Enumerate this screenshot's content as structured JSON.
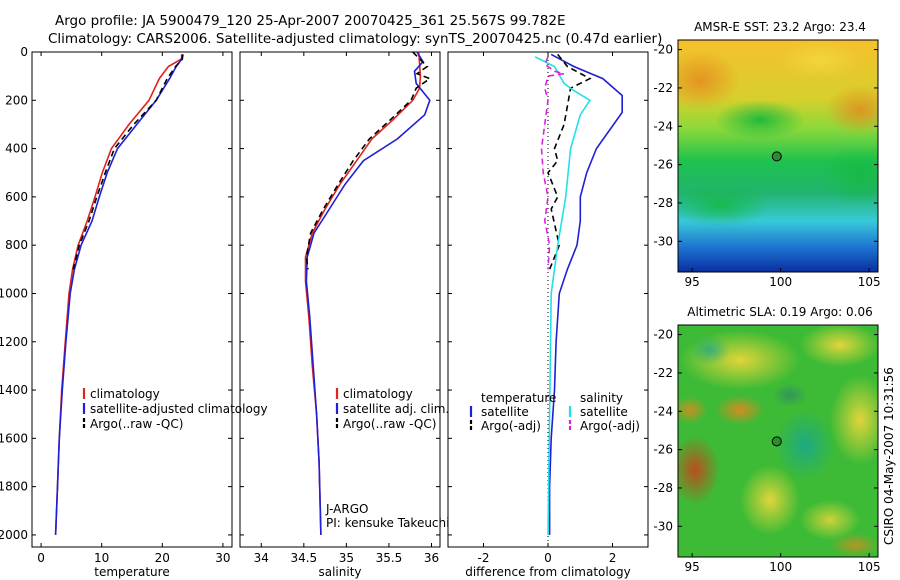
{
  "figure": {
    "title_line1": "Argo profile: JA 5900479_120 25-Apr-2007 20070425_361 25.567S 99.782E",
    "title_line2": "Climatology: CARS2006. Satellite-adjusted climatology: synTS_20070425.nc (0.47d earlier)",
    "side_stamp": "CSIRO 04-May-2007 10:31:56"
  },
  "colors": {
    "climatology": "#e0231b",
    "satellite": "#1f1fd6",
    "argo": "#000000",
    "satellite_diff": "#22e0e8",
    "argo_adj": "#e020e0",
    "marker": "#2e8b2e"
  },
  "chart_data": [
    {
      "id": "temperature",
      "type": "line",
      "xlabel": "temperature",
      "xlim": [
        -1.5,
        31.5
      ],
      "ylim": [
        2050,
        0
      ],
      "xticks": [
        0,
        10,
        20,
        30
      ],
      "yticks": [
        0,
        200,
        400,
        600,
        800,
        1000,
        1200,
        1400,
        1600,
        1800,
        2000
      ],
      "legend": [
        "climatology",
        "satellite-adjusted climatology",
        "Argo(..raw -QC)"
      ],
      "series": [
        {
          "name": "climatology",
          "color": "climatology",
          "dash": "",
          "points": [
            [
              23.4,
              10
            ],
            [
              23.1,
              30
            ],
            [
              21,
              60
            ],
            [
              19.5,
              110
            ],
            [
              17.8,
              200
            ],
            [
              14.5,
              300
            ],
            [
              11.6,
              400
            ],
            [
              10.1,
              500
            ],
            [
              8.9,
              600
            ],
            [
              7.6,
              700
            ],
            [
              6.1,
              800
            ],
            [
              5.2,
              900
            ],
            [
              4.6,
              1000
            ],
            [
              4.0,
              1200
            ],
            [
              3.4,
              1400
            ],
            [
              3.0,
              1600
            ],
            [
              2.7,
              1800
            ],
            [
              2.4,
              2000
            ]
          ]
        },
        {
          "name": "satellite-adjusted climatology",
          "color": "satellite",
          "dash": "",
          "points": [
            [
              23.2,
              10
            ],
            [
              23.2,
              30
            ],
            [
              22.3,
              60
            ],
            [
              21.2,
              110
            ],
            [
              19.0,
              200
            ],
            [
              15.8,
              300
            ],
            [
              12.6,
              400
            ],
            [
              10.9,
              500
            ],
            [
              9.6,
              600
            ],
            [
              8.4,
              700
            ],
            [
              6.6,
              800
            ],
            [
              5.5,
              900
            ],
            [
              4.8,
              1000
            ],
            [
              4.1,
              1200
            ],
            [
              3.5,
              1400
            ],
            [
              3.0,
              1600
            ],
            [
              2.7,
              1800
            ],
            [
              2.4,
              2000
            ]
          ]
        },
        {
          "name": "Argo(..raw -QC)",
          "color": "argo",
          "dash": "6,4",
          "points": [
            [
              23.4,
              10
            ],
            [
              23.3,
              30
            ],
            [
              22.2,
              60
            ],
            [
              20.8,
              110
            ],
            [
              19.0,
              200
            ],
            [
              15.3,
              300
            ],
            [
              12.1,
              400
            ],
            [
              10.6,
              500
            ],
            [
              9.2,
              600
            ],
            [
              7.9,
              700
            ],
            [
              6.3,
              800
            ],
            [
              5.3,
              900
            ]
          ]
        }
      ]
    },
    {
      "id": "salinity",
      "type": "line",
      "xlabel": "salinity",
      "xlim": [
        33.75,
        36.1
      ],
      "ylim": [
        2050,
        0
      ],
      "xticks": [
        34,
        34.5,
        35,
        35.5,
        36
      ],
      "yticks": [
        0,
        200,
        400,
        600,
        800,
        1000,
        1200,
        1400,
        1600,
        1800,
        2000
      ],
      "legend": [
        "climatology",
        "satellite adj. clim.",
        "Argo(..raw -QC)"
      ],
      "annotations": [
        "J-ARGO",
        "PI: kensuke Takeuchi"
      ],
      "series": [
        {
          "name": "climatology",
          "color": "climatology",
          "dash": "",
          "points": [
            [
              35.85,
              0
            ],
            [
              35.86,
              50
            ],
            [
              35.87,
              100
            ],
            [
              35.86,
              150
            ],
            [
              35.78,
              200
            ],
            [
              35.55,
              280
            ],
            [
              35.3,
              360
            ],
            [
              35.12,
              450
            ],
            [
              34.92,
              550
            ],
            [
              34.75,
              650
            ],
            [
              34.6,
              750
            ],
            [
              34.52,
              850
            ],
            [
              34.52,
              950
            ],
            [
              34.56,
              1100
            ],
            [
              34.6,
              1300
            ],
            [
              34.65,
              1500
            ],
            [
              34.68,
              1700
            ],
            [
              34.7,
              2000
            ]
          ]
        },
        {
          "name": "satellite adj. clim.",
          "color": "satellite",
          "dash": "",
          "points": [
            [
              35.83,
              0
            ],
            [
              35.9,
              40
            ],
            [
              35.8,
              80
            ],
            [
              35.82,
              130
            ],
            [
              35.98,
              200
            ],
            [
              35.92,
              260
            ],
            [
              35.6,
              360
            ],
            [
              35.2,
              450
            ],
            [
              34.98,
              550
            ],
            [
              34.8,
              650
            ],
            [
              34.62,
              750
            ],
            [
              34.54,
              850
            ],
            [
              34.53,
              950
            ],
            [
              34.57,
              1100
            ],
            [
              34.61,
              1300
            ],
            [
              34.65,
              1500
            ],
            [
              34.68,
              1700
            ],
            [
              34.7,
              2000
            ]
          ]
        },
        {
          "name": "Argo(..raw -QC)",
          "color": "argo",
          "dash": "6,4",
          "points": [
            [
              35.78,
              0
            ],
            [
              35.95,
              60
            ],
            [
              35.83,
              90
            ],
            [
              35.98,
              110
            ],
            [
              35.82,
              150
            ],
            [
              35.76,
              200
            ],
            [
              35.52,
              280
            ],
            [
              35.27,
              360
            ],
            [
              35.08,
              450
            ],
            [
              34.9,
              550
            ],
            [
              34.73,
              650
            ],
            [
              34.58,
              750
            ],
            [
              34.53,
              850
            ],
            [
              34.55,
              900
            ]
          ]
        }
      ]
    },
    {
      "id": "difference",
      "type": "line",
      "xlabel": "difference from climatology",
      "xlim": [
        -3.1,
        3.1
      ],
      "ylim": [
        2050,
        0
      ],
      "xticks": [
        -2,
        0,
        2
      ],
      "yticks": [
        0,
        200,
        400,
        600,
        800,
        1000,
        1200,
        1400,
        1600,
        1800,
        2000
      ],
      "legend": [
        "temperature",
        "satellite",
        "Argo(-adj)",
        "salinity",
        "satellite",
        "Argo(-adj)"
      ],
      "series": [
        {
          "name": "temperature satellite",
          "color": "satellite",
          "dash": "",
          "points": [
            [
              0.1,
              10
            ],
            [
              0.8,
              60
            ],
            [
              1.7,
              110
            ],
            [
              2.3,
              180
            ],
            [
              2.3,
              250
            ],
            [
              1.5,
              400
            ],
            [
              1.2,
              500
            ],
            [
              1.0,
              600
            ],
            [
              1.0,
              700
            ],
            [
              0.9,
              800
            ],
            [
              0.6,
              900
            ],
            [
              0.35,
              1000
            ],
            [
              0.25,
              1200
            ],
            [
              0.2,
              1400
            ],
            [
              0.1,
              1600
            ],
            [
              0.05,
              1800
            ],
            [
              0.05,
              2000
            ]
          ]
        },
        {
          "name": "temperature Argo(-adj)",
          "color": "argo",
          "dash": "6,4",
          "points": [
            [
              0.3,
              10
            ],
            [
              0.6,
              60
            ],
            [
              1.3,
              110
            ],
            [
              0.7,
              150
            ],
            [
              0.5,
              300
            ],
            [
              0.2,
              400
            ],
            [
              0.3,
              450
            ],
            [
              0.0,
              500
            ],
            [
              0.3,
              600
            ],
            [
              0.1,
              650
            ],
            [
              0.35,
              800
            ],
            [
              0.05,
              900
            ]
          ]
        },
        {
          "name": "salinity satellite",
          "color": "satellite_diff",
          "dash": "",
          "points": [
            [
              -0.4,
              20
            ],
            [
              0.2,
              60
            ],
            [
              0.5,
              130
            ],
            [
              0.8,
              160
            ],
            [
              1.3,
              200
            ],
            [
              1.0,
              260
            ],
            [
              0.7,
              400
            ],
            [
              0.55,
              600
            ],
            [
              0.3,
              800
            ],
            [
              0.1,
              1000
            ],
            [
              0.05,
              1500
            ],
            [
              0.0,
              2000
            ]
          ]
        },
        {
          "name": "salinity Argo(-adj)",
          "color": "argo_adj",
          "dash": "6,4",
          "points": [
            [
              0,
              20
            ],
            [
              -0.1,
              50
            ],
            [
              0.2,
              80
            ],
            [
              0.5,
              90
            ],
            [
              0.0,
              100
            ],
            [
              -0.1,
              150
            ],
            [
              0,
              200
            ],
            [
              -0.2,
              400
            ],
            [
              -0.15,
              500
            ],
            [
              0,
              600
            ],
            [
              -0.1,
              700
            ],
            [
              0.05,
              800
            ],
            [
              0,
              900
            ]
          ]
        }
      ]
    }
  ],
  "maps": [
    {
      "id": "sst",
      "title": "AMSR-E SST: 23.2 Argo: 23.4",
      "xlim": [
        94.2,
        105.5
      ],
      "ylim": [
        -31.6,
        -19.5
      ],
      "xticks": [
        95,
        100,
        105
      ],
      "yticks": [
        -20,
        -22,
        -24,
        -26,
        -28,
        -30
      ],
      "marker": [
        99.78,
        -25.57
      ]
    },
    {
      "id": "sla",
      "title": "Altimetric SLA: 0.19 Argo: 0.06",
      "xlim": [
        94.2,
        105.5
      ],
      "ylim": [
        -31.6,
        -19.5
      ],
      "xticks": [
        95,
        100,
        105
      ],
      "yticks": [
        -20,
        -22,
        -24,
        -26,
        -28,
        -30
      ],
      "marker": [
        99.78,
        -25.57
      ]
    }
  ]
}
